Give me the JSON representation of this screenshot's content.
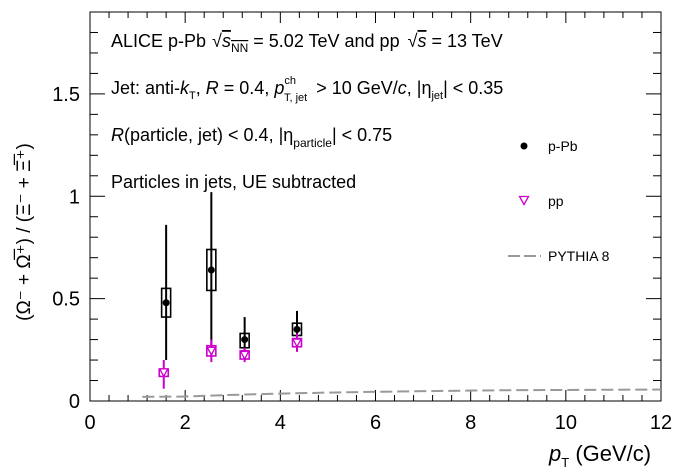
{
  "chart_data": {
    "type": "scatter",
    "x_axis": {
      "label_main": "p",
      "label_sub": "T",
      "label_units": " (GeV/c)",
      "range": [
        0,
        12
      ],
      "ticks": [
        "0",
        "2",
        "4",
        "6",
        "8",
        "10",
        "12"
      ]
    },
    "y_axis": {
      "label_text": "(Ω⁻ + Ω̅⁺) / (Ξ⁻ + Ξ̅⁺)",
      "range": [
        0,
        1.9
      ],
      "ticks": [
        "0",
        "0.5",
        "1",
        "1.5"
      ]
    },
    "annotations": {
      "line1_a": "ALICE p-Pb",
      "line1_sqrt": "√",
      "line1_s": "s",
      "line1_nn": "NN",
      "line1_b": " = 5.02 TeV and pp",
      "line1_c": "s",
      "line1_d": " = 13 TeV",
      "line2_a": "Jet: anti-",
      "line2_k": "k",
      "line2_kT": "T",
      "line2_b": ", ",
      "line2_R": "R",
      "line2_c": " = 0.4, ",
      "line2_p": "p",
      "line2_ch": "ch",
      "line2_tjet": "T, jet",
      "line2_d": " > 10 GeV/",
      "line2_cc": "c",
      "line2_e": ", |η",
      "line2_jet": "jet",
      "line2_f": "| < 0.35",
      "line3_R": "R",
      "line3_a": "(particle, jet) < 0.4, |η",
      "line3_sub": "particle",
      "line3_b": "| < 0.75",
      "line4": "Particles in jets, UE subtracted"
    },
    "legend": {
      "placement": "right",
      "entries": [
        "p-Pb",
        "pp",
        "PYTHIA 8"
      ]
    },
    "series": [
      {
        "name": "p-Pb",
        "color": "#000000",
        "marker": "filled-circle",
        "points": [
          {
            "x": 1.6,
            "y": 0.48,
            "stat_lo": 0.2,
            "stat_hi": 0.86,
            "sys_lo": 0.41,
            "sys_hi": 0.55
          },
          {
            "x": 2.55,
            "y": 0.64,
            "stat_lo": 0.27,
            "stat_hi": 1.02,
            "sys_lo": 0.54,
            "sys_hi": 0.74
          },
          {
            "x": 3.25,
            "y": 0.3,
            "stat_lo": 0.2,
            "stat_hi": 0.41,
            "sys_lo": 0.26,
            "sys_hi": 0.33
          },
          {
            "x": 4.35,
            "y": 0.35,
            "stat_lo": 0.27,
            "stat_hi": 0.44,
            "sys_lo": 0.32,
            "sys_hi": 0.38
          }
        ]
      },
      {
        "name": "pp",
        "color": "#cc00cc",
        "marker": "open-triangle-down",
        "points": [
          {
            "x": 1.55,
            "y": 0.14,
            "stat_lo": 0.06,
            "stat_hi": 0.2,
            "sys_lo": 0.12,
            "sys_hi": 0.155
          },
          {
            "x": 2.55,
            "y": 0.245,
            "stat_lo": 0.19,
            "stat_hi": 0.3,
            "sys_lo": 0.22,
            "sys_hi": 0.27
          },
          {
            "x": 3.25,
            "y": 0.225,
            "stat_lo": 0.19,
            "stat_hi": 0.26,
            "sys_lo": 0.205,
            "sys_hi": 0.245
          },
          {
            "x": 4.35,
            "y": 0.285,
            "stat_lo": 0.24,
            "stat_hi": 0.33,
            "sys_lo": 0.265,
            "sys_hi": 0.305
          }
        ]
      },
      {
        "name": "PYTHIA 8",
        "color": "#999999",
        "style": "dashed-line",
        "x": [
          1.1,
          2.0,
          3.0,
          4.0,
          5.0,
          6.0,
          7.0,
          8.0,
          9.0,
          10.0,
          11.0,
          12.0
        ],
        "y": [
          0.02,
          0.022,
          0.03,
          0.036,
          0.041,
          0.045,
          0.048,
          0.051,
          0.053,
          0.054,
          0.055,
          0.056
        ]
      }
    ],
    "grid": false
  }
}
